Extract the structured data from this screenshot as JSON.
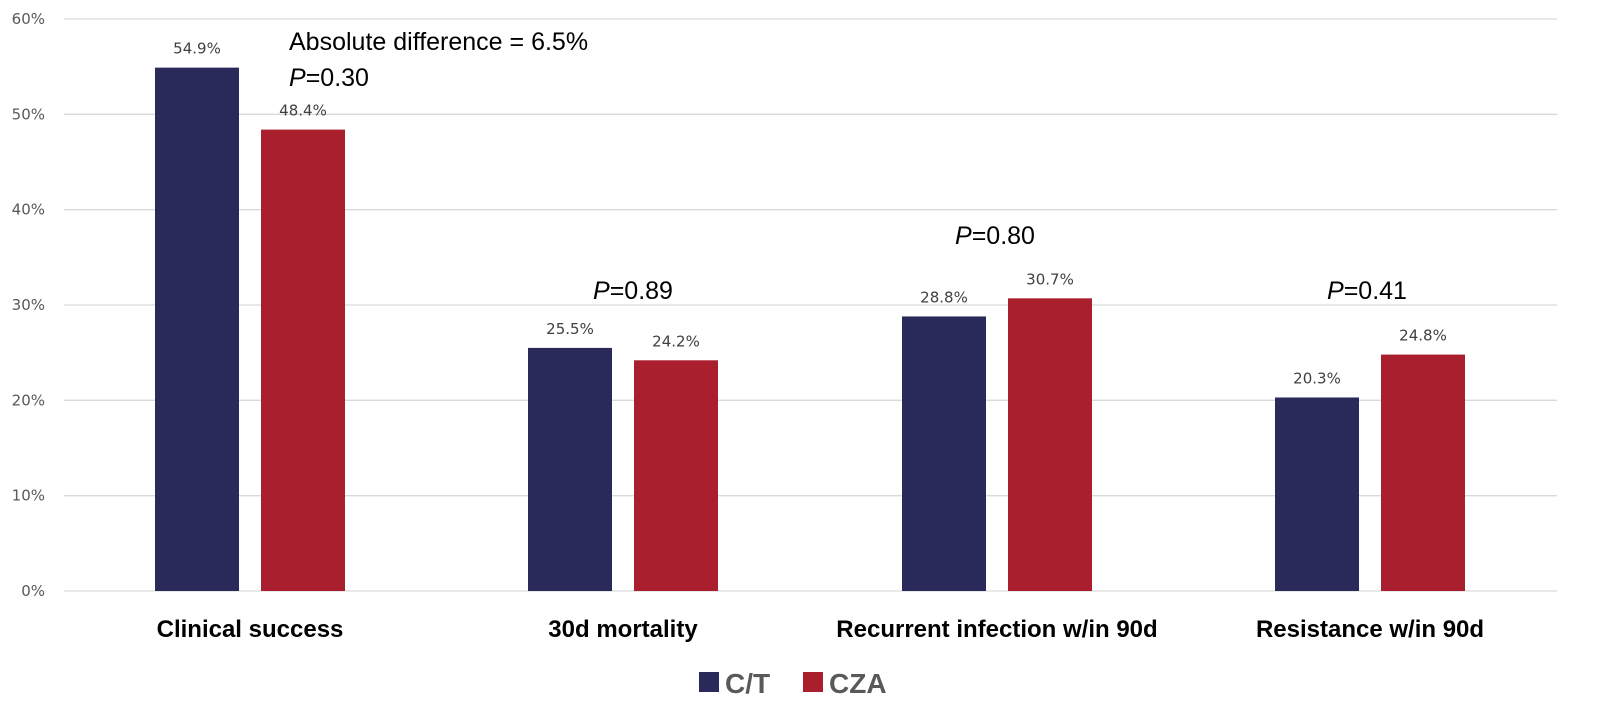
{
  "chart_data": {
    "type": "bar",
    "title": "",
    "xlabel": "",
    "ylabel": "",
    "ylim": [
      0,
      60
    ],
    "yticks": [
      0,
      10,
      20,
      30,
      40,
      50,
      60
    ],
    "ytick_labels": [
      "0%",
      "10%",
      "20%",
      "30%",
      "40%",
      "50%",
      "60%"
    ],
    "grid": true,
    "legend_position": "bottom-center",
    "categories": [
      "Clinical success",
      "30d mortality",
      "Recurrent infection w/in 90d",
      "Resistance w/in 90d"
    ],
    "series": [
      {
        "name": "C/T",
        "color": "#2A2A5A",
        "values": [
          54.9,
          25.5,
          28.8,
          20.3
        ],
        "labels": [
          "54.9%",
          "25.5%",
          "28.8%",
          "20.3%"
        ]
      },
      {
        "name": "CZA",
        "color": "#A91F2E",
        "values": [
          48.4,
          24.2,
          30.7,
          24.8
        ],
        "labels": [
          "48.4%",
          "24.2%",
          "30.7%",
          "24.8%"
        ]
      }
    ],
    "annotations": [
      {
        "category": "Clinical success",
        "lines": [
          "Absolute difference = 6.5%"
        ],
        "p_prefix": "P",
        "p_value": "=0.30"
      },
      {
        "category": "30d mortality",
        "lines": [],
        "p_prefix": "P",
        "p_value": "=0.89"
      },
      {
        "category": "Recurrent infection w/in 90d",
        "lines": [],
        "p_prefix": "P",
        "p_value": "=0.80"
      },
      {
        "category": "Resistance w/in 90d",
        "lines": [],
        "p_prefix": "P",
        "p_value": "=0.41"
      }
    ]
  },
  "colors": {
    "gridline": "#D9D9D9",
    "tick_text": "#595959"
  }
}
